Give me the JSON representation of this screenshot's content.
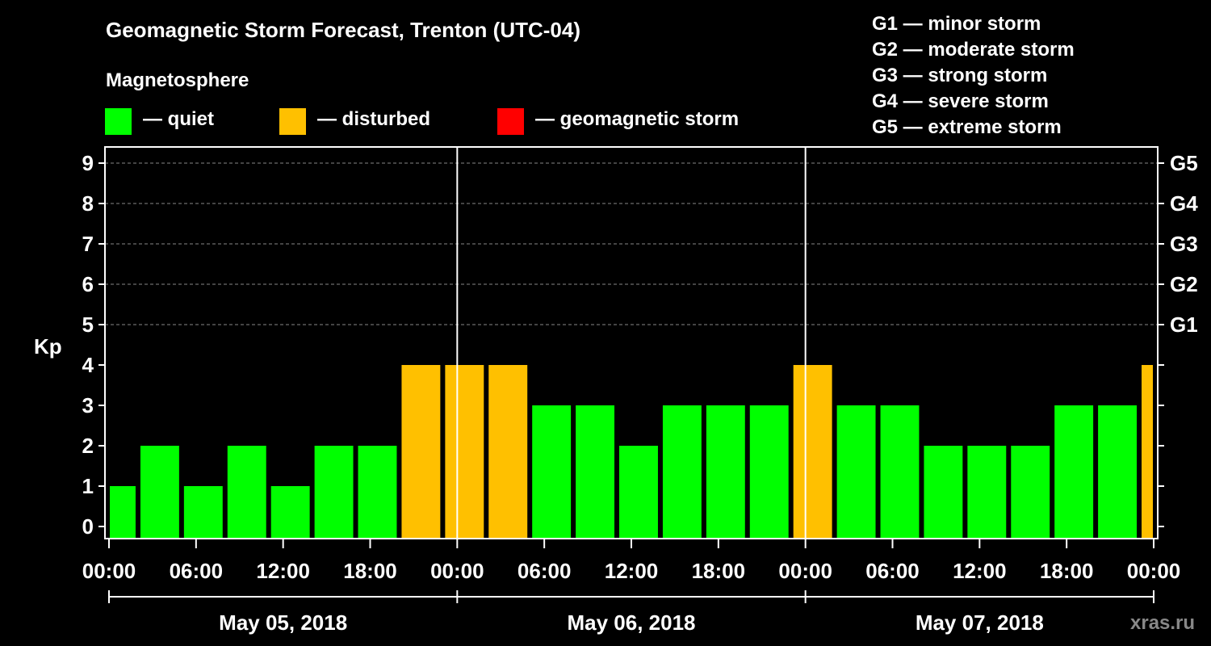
{
  "header": {
    "title": "Geomagnetic Storm Forecast, Trenton (UTC-04)",
    "subtitle": "Magnetosphere"
  },
  "legend": [
    {
      "label": "— quiet",
      "color": "#00ff00"
    },
    {
      "label": "— disturbed",
      "color": "#ffc000"
    },
    {
      "label": "— geomagnetic storm",
      "color": "#ff0000"
    }
  ],
  "g_scale": [
    "G1 — minor storm",
    "G2 — moderate storm",
    "G3 — strong storm",
    "G4 — severe storm",
    "G5 — extreme storm"
  ],
  "watermark": "xras.ru",
  "chart_data": {
    "type": "bar",
    "title": "Geomagnetic Storm Forecast, Trenton (UTC-04)",
    "ylabel": "Kp",
    "ylim": [
      0,
      9
    ],
    "yticks": [
      "0",
      "1",
      "2",
      "3",
      "4",
      "5",
      "6",
      "7",
      "8",
      "9"
    ],
    "right_ticks": [
      {
        "kp": 5,
        "label": "G1"
      },
      {
        "kp": 6,
        "label": "G2"
      },
      {
        "kp": 7,
        "label": "G3"
      },
      {
        "kp": 8,
        "label": "G4"
      },
      {
        "kp": 9,
        "label": "G5"
      }
    ],
    "x_hours": [
      0,
      72
    ],
    "xtick_labels": [
      "00:00",
      "06:00",
      "12:00",
      "18:00",
      "00:00",
      "06:00",
      "12:00",
      "18:00",
      "00:00",
      "06:00",
      "12:00",
      "18:00",
      "00:00"
    ],
    "day_labels": [
      "May 05, 2018",
      "May 06, 2018",
      "May 07, 2018"
    ],
    "bars": [
      {
        "start": 0,
        "end": 2,
        "kp": 1
      },
      {
        "start": 2,
        "end": 5,
        "kp": 2
      },
      {
        "start": 5,
        "end": 8,
        "kp": 1
      },
      {
        "start": 8,
        "end": 11,
        "kp": 2
      },
      {
        "start": 11,
        "end": 14,
        "kp": 1
      },
      {
        "start": 14,
        "end": 17,
        "kp": 2
      },
      {
        "start": 17,
        "end": 20,
        "kp": 2
      },
      {
        "start": 20,
        "end": 23,
        "kp": 4
      },
      {
        "start": 23,
        "end": 26,
        "kp": 4
      },
      {
        "start": 26,
        "end": 29,
        "kp": 4
      },
      {
        "start": 29,
        "end": 32,
        "kp": 3
      },
      {
        "start": 32,
        "end": 35,
        "kp": 3
      },
      {
        "start": 35,
        "end": 38,
        "kp": 2
      },
      {
        "start": 38,
        "end": 41,
        "kp": 3
      },
      {
        "start": 41,
        "end": 44,
        "kp": 3
      },
      {
        "start": 44,
        "end": 47,
        "kp": 3
      },
      {
        "start": 47,
        "end": 50,
        "kp": 4
      },
      {
        "start": 50,
        "end": 53,
        "kp": 3
      },
      {
        "start": 53,
        "end": 56,
        "kp": 3
      },
      {
        "start": 56,
        "end": 59,
        "kp": 2
      },
      {
        "start": 59,
        "end": 62,
        "kp": 2
      },
      {
        "start": 62,
        "end": 65,
        "kp": 2
      },
      {
        "start": 65,
        "end": 68,
        "kp": 3
      },
      {
        "start": 68,
        "end": 71,
        "kp": 3
      },
      {
        "start": 71,
        "end": 72,
        "kp": 4
      }
    ]
  }
}
